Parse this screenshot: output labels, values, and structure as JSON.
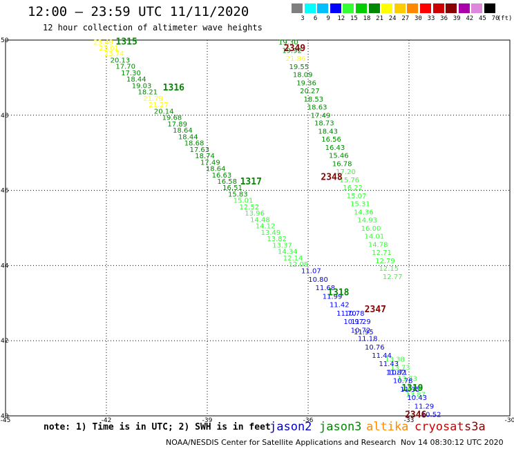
{
  "header": {
    "title": "12:00 — 23:59 UTC 11/11/2020",
    "subtitle": "12 hour collection of altimeter wave heights"
  },
  "legend": {
    "unit": "(ft)",
    "bins": [
      {
        "label": "3",
        "color": "#7f7f7f"
      },
      {
        "label": "6",
        "color": "#00ffff"
      },
      {
        "label": "9",
        "color": "#00bfff"
      },
      {
        "label": "12",
        "color": "#0000ff"
      },
      {
        "label": "15",
        "color": "#33ff33"
      },
      {
        "label": "18",
        "color": "#00cc00"
      },
      {
        "label": "21",
        "color": "#008800"
      },
      {
        "label": "24",
        "color": "#ffff00"
      },
      {
        "label": "27",
        "color": "#ffcc00"
      },
      {
        "label": "30",
        "color": "#ff8800"
      },
      {
        "label": "33",
        "color": "#ff0000"
      },
      {
        "label": "36",
        "color": "#cc0000"
      },
      {
        "label": "39",
        "color": "#880000"
      },
      {
        "label": "42",
        "color": "#aa00aa"
      },
      {
        "label": "45",
        "color": "#dd88dd"
      },
      {
        "label": "70",
        "color": "#000000"
      }
    ]
  },
  "footer": {
    "note": "note: 1) Time is in UTC; 2) SWH is in feet",
    "satellites": [
      {
        "name": "jason2",
        "color": "#0000cc"
      },
      {
        "name": "jason3",
        "color": "#008800"
      },
      {
        "name": "altika",
        "color": "#ff8800"
      },
      {
        "name": "cryosat",
        "color": "#cc0000"
      },
      {
        "name": "s3a",
        "color": "#880000"
      }
    ],
    "credit": "NOAA/NESDIS Center for Satellite Applications and Research",
    "timestamp": "Nov 14 08:30:12 UTC 2020"
  },
  "chart_data": {
    "type": "scatter",
    "xlim": [
      -45,
      -30
    ],
    "ylim": [
      40,
      50
    ],
    "xticks": [
      "-45",
      "-42",
      "-39",
      "-36",
      "-33",
      "-30"
    ],
    "yticks": [
      "40",
      "42",
      "44",
      "46",
      "48",
      "50"
    ],
    "grid": true,
    "pass_labels": [
      {
        "text": "1315",
        "x": -41.4,
        "y": 49.97,
        "color": "#008800"
      },
      {
        "text": "1316",
        "x": -40.0,
        "y": 48.75,
        "color": "#008800"
      },
      {
        "text": "1317",
        "x": -37.7,
        "y": 46.25,
        "color": "#008800"
      },
      {
        "text": "1318",
        "x": -35.1,
        "y": 43.3,
        "color": "#008800"
      },
      {
        "text": "1319",
        "x": -32.9,
        "y": 40.75,
        "color": "#008800"
      },
      {
        "text": "2349",
        "x": -36.4,
        "y": 49.8,
        "color": "#880000"
      },
      {
        "text": "2348",
        "x": -35.3,
        "y": 46.37,
        "color": "#880000"
      },
      {
        "text": "2347",
        "x": -34.0,
        "y": 42.85,
        "color": "#880000"
      },
      {
        "text": "2346",
        "x": -32.8,
        "y": 40.05,
        "color": "#880000"
      }
    ],
    "series": [
      {
        "name": "jason3",
        "points": [
          {
            "x": -42.09,
            "y": 49.95,
            "v": "23.49",
            "color": "#ffff00"
          },
          {
            "x": -41.93,
            "y": 49.8,
            "v": "23.01",
            "color": "#ffff00"
          },
          {
            "x": -41.77,
            "y": 49.65,
            "v": "23.74",
            "color": "#ffff00"
          },
          {
            "x": -41.59,
            "y": 49.48,
            "v": "20.13",
            "color": "#008800"
          },
          {
            "x": -41.43,
            "y": 49.31,
            "v": "17.70",
            "color": "#008800"
          },
          {
            "x": -41.27,
            "y": 49.14,
            "v": "17.30",
            "color": "#008800"
          },
          {
            "x": -41.11,
            "y": 48.97,
            "v": "18.44",
            "color": "#008800"
          },
          {
            "x": -40.95,
            "y": 48.8,
            "v": "19.03",
            "color": "#008800"
          },
          {
            "x": -40.77,
            "y": 48.63,
            "v": "18.21",
            "color": "#008800"
          },
          {
            "x": -40.61,
            "y": 48.46,
            "v": "21.79",
            "color": "#ffff00"
          },
          {
            "x": -40.45,
            "y": 48.29,
            "v": "21.27",
            "color": "#ffff00"
          },
          {
            "x": -40.29,
            "y": 48.12,
            "v": "20.14",
            "color": "#008800"
          },
          {
            "x": -40.05,
            "y": 47.95,
            "v": "19.68",
            "color": "#008800"
          },
          {
            "x": -39.89,
            "y": 47.78,
            "v": "17.89",
            "color": "#008800"
          },
          {
            "x": -39.73,
            "y": 47.61,
            "v": "18.64",
            "color": "#008800"
          },
          {
            "x": -39.57,
            "y": 47.44,
            "v": "18.44",
            "color": "#008800"
          },
          {
            "x": -39.39,
            "y": 47.27,
            "v": "18.68",
            "color": "#008800"
          },
          {
            "x": -39.23,
            "y": 47.1,
            "v": "17.63",
            "color": "#008800"
          },
          {
            "x": -39.07,
            "y": 46.93,
            "v": "18.74",
            "color": "#008800"
          },
          {
            "x": -38.91,
            "y": 46.76,
            "v": "17.49",
            "color": "#008800"
          },
          {
            "x": -38.75,
            "y": 46.59,
            "v": "18.64",
            "color": "#008800"
          },
          {
            "x": -38.57,
            "y": 46.42,
            "v": "16.63",
            "color": "#008800"
          },
          {
            "x": -38.41,
            "y": 46.25,
            "v": "16.58",
            "color": "#008800"
          },
          {
            "x": -38.25,
            "y": 46.08,
            "v": "16.51",
            "color": "#008800"
          },
          {
            "x": -38.09,
            "y": 45.91,
            "v": "15.83",
            "color": "#008800"
          },
          {
            "x": -37.93,
            "y": 45.74,
            "v": "15.01",
            "color": "#33ff33"
          },
          {
            "x": -37.75,
            "y": 45.57,
            "v": "12.52",
            "color": "#33ff33"
          },
          {
            "x": -37.59,
            "y": 45.4,
            "v": "13.96",
            "color": "#33ff33"
          },
          {
            "x": -37.43,
            "y": 45.23,
            "v": "14.48",
            "color": "#33ff33"
          },
          {
            "x": -37.27,
            "y": 45.06,
            "v": "14.12",
            "color": "#33ff33"
          },
          {
            "x": -37.11,
            "y": 44.89,
            "v": "13.49",
            "color": "#33ff33"
          },
          {
            "x": -36.93,
            "y": 44.72,
            "v": "13.82",
            "color": "#33ff33"
          },
          {
            "x": -36.77,
            "y": 44.55,
            "v": "13.37",
            "color": "#33ff33"
          },
          {
            "x": -36.61,
            "y": 44.38,
            "v": "14.34",
            "color": "#33ff33"
          },
          {
            "x": -36.45,
            "y": 44.21,
            "v": "12.14",
            "color": "#33ff33"
          },
          {
            "x": -36.29,
            "y": 44.04,
            "v": "12.08",
            "color": "#33ff33"
          },
          {
            "x": -36.59,
            "y": 49.95,
            "v": "19.30",
            "color": "#008800"
          },
          {
            "x": -36.48,
            "y": 49.73,
            "v": "19.92",
            "color": "#008800"
          },
          {
            "x": -36.37,
            "y": 49.52,
            "v": "21.86",
            "color": "#ffff00"
          },
          {
            "x": -36.27,
            "y": 49.3,
            "v": "19.55",
            "color": "#008800"
          },
          {
            "x": -36.16,
            "y": 49.09,
            "v": "18.09",
            "color": "#008800"
          },
          {
            "x": -36.05,
            "y": 48.87,
            "v": "19.36",
            "color": "#008800"
          },
          {
            "x": -35.95,
            "y": 48.66,
            "v": "20.27",
            "color": "#008800"
          },
          {
            "x": -35.84,
            "y": 48.44,
            "v": "18.53",
            "color": "#008800"
          },
          {
            "x": -35.73,
            "y": 48.23,
            "v": "18.63",
            "color": "#008800"
          },
          {
            "x": -35.63,
            "y": 48.01,
            "v": "17.49",
            "color": "#008800"
          },
          {
            "x": -35.52,
            "y": 47.8,
            "v": "18.73",
            "color": "#008800"
          },
          {
            "x": -35.41,
            "y": 47.58,
            "v": "18.43",
            "color": "#008800"
          },
          {
            "x": -35.31,
            "y": 47.37,
            "v": "16.56",
            "color": "#008800"
          },
          {
            "x": -35.2,
            "y": 47.15,
            "v": "16.43",
            "color": "#008800"
          },
          {
            "x": -35.09,
            "y": 46.94,
            "v": "15.46",
            "color": "#008800"
          },
          {
            "x": -34.99,
            "y": 46.72,
            "v": "16.78",
            "color": "#008800"
          },
          {
            "x": -34.88,
            "y": 46.51,
            "v": "17.20",
            "color": "#33ff33"
          },
          {
            "x": -34.77,
            "y": 46.29,
            "v": "15.76",
            "color": "#33ff33"
          },
          {
            "x": -34.67,
            "y": 46.08,
            "v": "16.22",
            "color": "#33ff33"
          },
          {
            "x": -34.56,
            "y": 45.86,
            "v": "15.07",
            "color": "#33ff33"
          },
          {
            "x": -34.45,
            "y": 45.65,
            "v": "15.31",
            "color": "#33ff33"
          },
          {
            "x": -34.35,
            "y": 45.43,
            "v": "14.36",
            "color": "#33ff33"
          },
          {
            "x": -34.24,
            "y": 45.22,
            "v": "14.93",
            "color": "#33ff33"
          },
          {
            "x": -34.13,
            "y": 45.0,
            "v": "16.00",
            "color": "#33ff33"
          },
          {
            "x": -34.03,
            "y": 44.79,
            "v": "14.01",
            "color": "#33ff33"
          },
          {
            "x": -33.92,
            "y": 44.57,
            "v": "14.78",
            "color": "#33ff33"
          },
          {
            "x": -33.81,
            "y": 44.36,
            "v": "12.71",
            "color": "#33ff33"
          },
          {
            "x": -33.71,
            "y": 44.14,
            "v": "12.79",
            "color": "#33ff33"
          },
          {
            "x": -33.6,
            "y": 43.93,
            "v": "12.15",
            "color": "#33ff33"
          },
          {
            "x": -33.49,
            "y": 43.71,
            "v": "12.77",
            "color": "#33ff33"
          },
          {
            "x": -33.42,
            "y": 41.52,
            "v": "13.38",
            "color": "#33ff33"
          },
          {
            "x": -33.26,
            "y": 41.3,
            "v": "13.73",
            "color": "#33ff33"
          },
          {
            "x": -33.05,
            "y": 41.0,
            "v": "13.73",
            "color": "#33ff33"
          },
          {
            "x": -32.9,
            "y": 40.78,
            "v": "13.58",
            "color": "#33ff33"
          },
          {
            "x": -32.8,
            "y": 40.58,
            "v": "13.87",
            "color": "#33ff33"
          }
        ]
      },
      {
        "name": "jason2",
        "points": [
          {
            "x": -35.91,
            "y": 43.87,
            "v": "11.07",
            "color": "#0000ff"
          },
          {
            "x": -35.7,
            "y": 43.64,
            "v": "10.80",
            "color": "#0000ff"
          },
          {
            "x": -35.49,
            "y": 43.42,
            "v": "11.68",
            "color": "#0000ff"
          },
          {
            "x": -35.28,
            "y": 43.19,
            "v": "11.99",
            "color": "#0000ff"
          },
          {
            "x": -35.07,
            "y": 42.97,
            "v": "11.42",
            "color": "#0000ff"
          },
          {
            "x": -34.86,
            "y": 42.74,
            "v": "11.70",
            "color": "#0000ff"
          },
          {
            "x": -34.65,
            "y": 42.52,
            "v": "10.97",
            "color": "#0000ff"
          },
          {
            "x": -34.44,
            "y": 42.29,
            "v": "10.72",
            "color": "#0000ff"
          },
          {
            "x": -34.23,
            "y": 42.07,
            "v": "11.18",
            "color": "#0000ff"
          },
          {
            "x": -34.02,
            "y": 41.84,
            "v": "10.76",
            "color": "#0000ff"
          },
          {
            "x": -33.81,
            "y": 41.62,
            "v": "11.44",
            "color": "#0000ff"
          },
          {
            "x": -33.6,
            "y": 41.4,
            "v": "11.43",
            "color": "#0000ff"
          },
          {
            "x": -33.39,
            "y": 41.17,
            "v": "11.82",
            "color": "#0000ff"
          },
          {
            "x": -33.18,
            "y": 40.95,
            "v": "10.78",
            "color": "#0000ff"
          },
          {
            "x": -32.97,
            "y": 40.72,
            "v": "11.35",
            "color": "#0000ff"
          },
          {
            "x": -32.76,
            "y": 40.5,
            "v": "10.43",
            "color": "#0000ff"
          },
          {
            "x": -32.55,
            "y": 40.27,
            "v": "11.29",
            "color": "#0000ff"
          },
          {
            "x": -32.34,
            "y": 40.05,
            "v": "10.52",
            "color": "#0000ff"
          },
          {
            "x": -34.62,
            "y": 42.74,
            "v": "10.78",
            "color": "#0000ff"
          },
          {
            "x": -34.43,
            "y": 42.52,
            "v": "11.29",
            "color": "#0000ff"
          },
          {
            "x": -34.35,
            "y": 42.24,
            "v": "11.95",
            "color": "#0000ff"
          },
          {
            "x": -33.34,
            "y": 41.17,
            "v": "10.71",
            "color": "#0000ff"
          }
        ]
      }
    ]
  }
}
